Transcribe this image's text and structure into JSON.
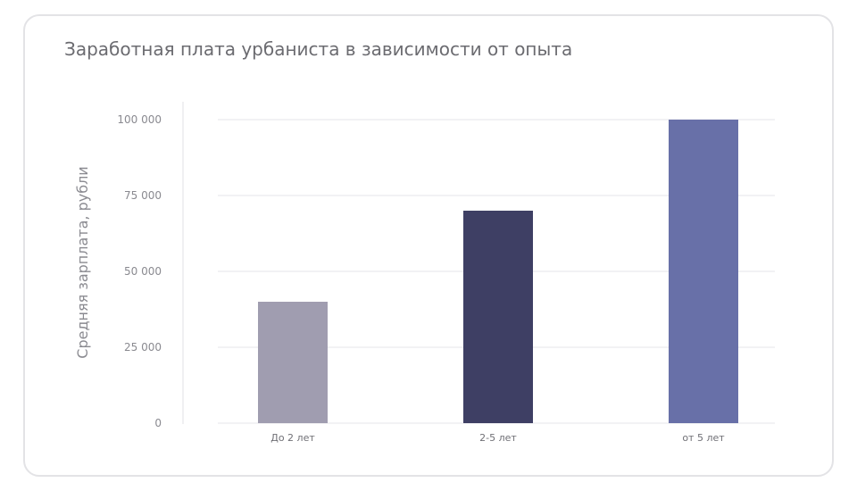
{
  "chart_data": {
    "type": "bar",
    "title": "Заработная плата урбаниста в зависимости от опыта",
    "xlabel": "",
    "ylabel": "Средняя зарплата, рубли",
    "categories": [
      "До 2 лет",
      "2-5 лет",
      "от 5 лет"
    ],
    "values": [
      40000,
      70000,
      100000
    ],
    "bar_colors": [
      "#a09db0",
      "#3e3f64",
      "#6870a8"
    ],
    "ylim": [
      0,
      100000
    ],
    "yticks": [
      0,
      25000,
      50000,
      75000,
      100000
    ],
    "ytick_labels": [
      "0",
      "25 000",
      "50 000",
      "75 000",
      "100 000"
    ],
    "grid": true,
    "legend": "none"
  }
}
